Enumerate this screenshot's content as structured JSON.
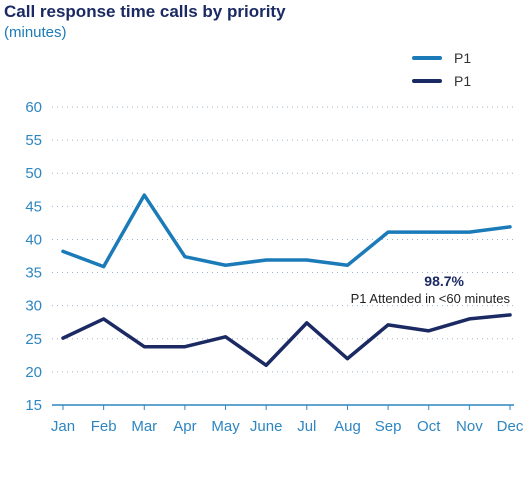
{
  "chart_data": {
    "type": "line",
    "title": "Call response time calls by priority",
    "subtitle": "(minutes)",
    "categories": [
      "Jan",
      "Feb",
      "Mar",
      "Apr",
      "May",
      "June",
      "Jul",
      "Aug",
      "Sep",
      "Oct",
      "Nov",
      "Dec"
    ],
    "series": [
      {
        "name": "P1",
        "color": "#1b7bb8",
        "values": [
          38.2,
          35.9,
          46.7,
          37.4,
          36.1,
          36.9,
          36.9,
          36.1,
          41.1,
          41.1,
          41.1,
          41.9
        ]
      },
      {
        "name": "P1",
        "color": "#1b2a63",
        "values": [
          25.1,
          28.0,
          23.8,
          23.8,
          25.3,
          21.0,
          27.4,
          22.0,
          27.1,
          26.2,
          28.0,
          28.6
        ]
      }
    ],
    "yticks": [
      15,
      20,
      25,
      30,
      35,
      40,
      45,
      50,
      55,
      60
    ],
    "ylim": [
      15,
      60
    ],
    "grid": "horizontal-dotted",
    "legend": "top-right",
    "annotation": {
      "value": "98.7%",
      "text": "P1 Attended in <60 minutes"
    }
  }
}
